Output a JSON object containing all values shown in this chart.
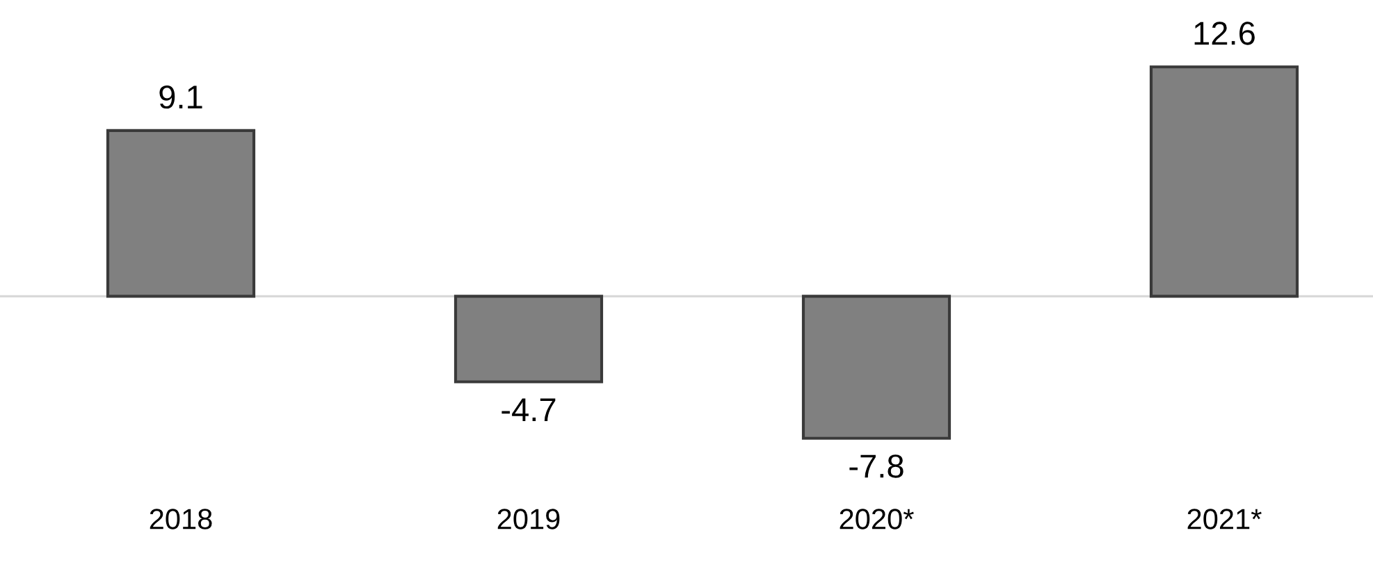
{
  "chart_data": {
    "type": "bar",
    "categories": [
      "2018",
      "2019",
      "2020*",
      "2021*"
    ],
    "values": [
      9.1,
      -4.7,
      -7.8,
      12.6
    ],
    "color": "#808080",
    "data_labels": true,
    "grid": false,
    "legend": false
  }
}
